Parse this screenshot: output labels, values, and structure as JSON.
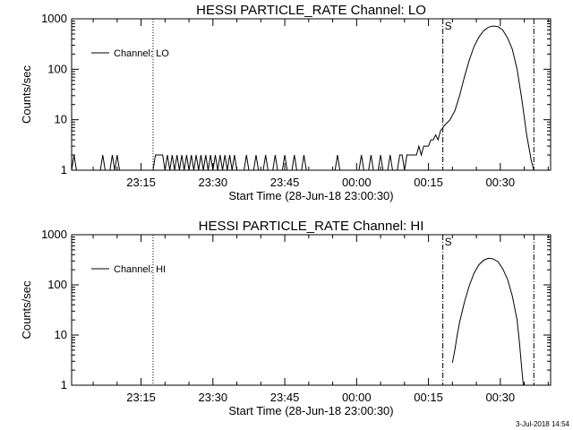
{
  "chart_data": [
    {
      "type": "line",
      "title": "HESSI PARTICLE_RATE Channel: LO",
      "xlabel": "Start Time (28-Jun-18 23:00:30)",
      "ylabel": "Counts/sec",
      "y_scale": "log",
      "ylim": [
        1,
        1000
      ],
      "xlim": [
        0,
        100
      ],
      "x_unit": "minutes from 23:00:30",
      "x_tick_labels": [
        "23:15",
        "23:30",
        "23:45",
        "00:00",
        "00:15",
        "00:30"
      ],
      "x_tick_values": [
        14.5,
        29.5,
        44.5,
        59.5,
        74.5,
        89.5
      ],
      "y_tick_labels": [
        "1",
        "10",
        "100",
        "1000"
      ],
      "y_tick_values": [
        1,
        10,
        100,
        1000
      ],
      "legend": {
        "entries": [
          "Channel: LO"
        ],
        "placement": "top-left"
      },
      "annotations": [
        {
          "text": "S",
          "x": 77.5
        }
      ],
      "vertical_markers": [
        {
          "x": 17,
          "style": "dotted"
        },
        {
          "x": 77.5,
          "style": "dash-dot"
        },
        {
          "x": 96.5,
          "style": "dash-dot"
        }
      ],
      "series": [
        {
          "name": "Channel: LO",
          "points": [
            [
              0,
              1
            ],
            [
              0.5,
              2
            ],
            [
              1,
              1
            ],
            [
              6,
              1
            ],
            [
              6.5,
              2
            ],
            [
              7,
              1
            ],
            [
              8,
              1
            ],
            [
              8.5,
              2
            ],
            [
              9,
              1
            ],
            [
              9.5,
              2
            ],
            [
              10,
              1
            ],
            [
              17,
              1
            ],
            [
              17.5,
              2
            ],
            [
              19,
              2
            ],
            [
              19.5,
              1
            ],
            [
              20,
              2
            ],
            [
              20.5,
              1
            ],
            [
              21,
              2
            ],
            [
              21.5,
              1
            ],
            [
              22,
              2
            ],
            [
              22.5,
              1
            ],
            [
              23,
              2
            ],
            [
              23.5,
              1
            ],
            [
              24,
              2
            ],
            [
              24.5,
              1
            ],
            [
              25,
              2
            ],
            [
              25.5,
              1
            ],
            [
              26,
              2
            ],
            [
              26.5,
              1
            ],
            [
              27,
              2
            ],
            [
              27.5,
              1
            ],
            [
              28,
              2
            ],
            [
              28.5,
              1
            ],
            [
              29,
              2
            ],
            [
              29.5,
              1
            ],
            [
              30,
              2
            ],
            [
              30.5,
              1
            ],
            [
              31,
              2
            ],
            [
              31.5,
              1
            ],
            [
              32,
              2
            ],
            [
              32.5,
              1
            ],
            [
              33,
              2
            ],
            [
              33.5,
              1
            ],
            [
              34,
              2
            ],
            [
              34.5,
              1
            ],
            [
              36,
              1
            ],
            [
              36.5,
              2
            ],
            [
              37,
              1
            ],
            [
              38,
              1
            ],
            [
              38.5,
              2
            ],
            [
              39,
              1
            ],
            [
              40,
              1
            ],
            [
              40.5,
              2
            ],
            [
              41,
              1
            ],
            [
              42,
              1
            ],
            [
              42.5,
              2
            ],
            [
              43,
              1
            ],
            [
              44,
              1
            ],
            [
              44.5,
              2
            ],
            [
              45,
              1
            ],
            [
              46,
              1
            ],
            [
              46.5,
              2
            ],
            [
              47,
              1
            ],
            [
              48,
              1
            ],
            [
              48.5,
              2
            ],
            [
              49,
              1
            ],
            [
              55,
              1
            ],
            [
              55.5,
              2
            ],
            [
              56,
              1
            ],
            [
              60,
              1
            ],
            [
              60.5,
              2
            ],
            [
              61,
              1
            ],
            [
              62,
              1
            ],
            [
              62.5,
              2
            ],
            [
              63,
              1
            ],
            [
              64,
              1
            ],
            [
              64.5,
              2
            ],
            [
              65,
              1
            ],
            [
              66,
              1
            ],
            [
              66.5,
              2
            ],
            [
              67,
              1
            ],
            [
              68,
              1
            ],
            [
              68.5,
              2
            ],
            [
              69,
              2
            ],
            [
              69.5,
              1
            ],
            [
              70,
              2
            ],
            [
              70.5,
              2
            ],
            [
              71,
              2
            ],
            [
              71.5,
              2
            ],
            [
              72,
              2
            ],
            [
              72.5,
              3
            ],
            [
              73,
              2
            ],
            [
              73.5,
              3
            ],
            [
              74,
              3
            ],
            [
              74.5,
              3
            ],
            [
              75,
              4
            ],
            [
              75.5,
              4
            ],
            [
              76,
              5
            ],
            [
              76.5,
              4
            ],
            [
              77,
              6
            ],
            [
              77.5,
              7
            ],
            [
              78,
              8
            ],
            [
              79,
              10
            ],
            [
              80,
              15
            ],
            [
              81,
              30
            ],
            [
              82,
              70
            ],
            [
              83,
              150
            ],
            [
              84,
              280
            ],
            [
              85,
              430
            ],
            [
              86,
              580
            ],
            [
              87,
              680
            ],
            [
              88,
              720
            ],
            [
              89,
              700
            ],
            [
              90,
              600
            ],
            [
              91,
              420
            ],
            [
              92,
              250
            ],
            [
              93,
              100
            ],
            [
              94,
              25
            ],
            [
              95,
              5
            ],
            [
              96,
              1.5
            ],
            [
              96.5,
              1
            ]
          ]
        }
      ]
    },
    {
      "type": "line",
      "title": "HESSI PARTICLE_RATE Channel: HI",
      "xlabel": "Start Time (28-Jun-18 23:00:30)",
      "ylabel": "Counts/sec",
      "y_scale": "log",
      "ylim": [
        1,
        1000
      ],
      "xlim": [
        0,
        100
      ],
      "x_unit": "minutes from 23:00:30",
      "x_tick_labels": [
        "23:15",
        "23:30",
        "23:45",
        "00:00",
        "00:15",
        "00:30"
      ],
      "x_tick_values": [
        14.5,
        29.5,
        44.5,
        59.5,
        74.5,
        89.5
      ],
      "y_tick_labels": [
        "1",
        "10",
        "100",
        "1000"
      ],
      "y_tick_values": [
        1,
        10,
        100,
        1000
      ],
      "legend": {
        "entries": [
          "Channel: HI"
        ],
        "placement": "top-left"
      },
      "annotations": [
        {
          "text": "S",
          "x": 77.5
        }
      ],
      "vertical_markers": [
        {
          "x": 17,
          "style": "dotted"
        },
        {
          "x": 77.5,
          "style": "dash-dot"
        },
        {
          "x": 96.5,
          "style": "dash-dot"
        }
      ],
      "series": [
        {
          "name": "Channel: HI",
          "points": [
            [
              79.5,
              2.8
            ],
            [
              80,
              5
            ],
            [
              80.5,
              10
            ],
            [
              81,
              18
            ],
            [
              82,
              45
            ],
            [
              83,
              95
            ],
            [
              84,
              170
            ],
            [
              85,
              250
            ],
            [
              86,
              310
            ],
            [
              87,
              340
            ],
            [
              88,
              330
            ],
            [
              89,
              290
            ],
            [
              90,
              210
            ],
            [
              91,
              130
            ],
            [
              92,
              60
            ],
            [
              93,
              20
            ],
            [
              93.5,
              7
            ],
            [
              94,
              2
            ],
            [
              94.3,
              1
            ]
          ]
        }
      ]
    }
  ],
  "footer": {
    "date_stamp": "3-Jul-2018 14:54"
  }
}
